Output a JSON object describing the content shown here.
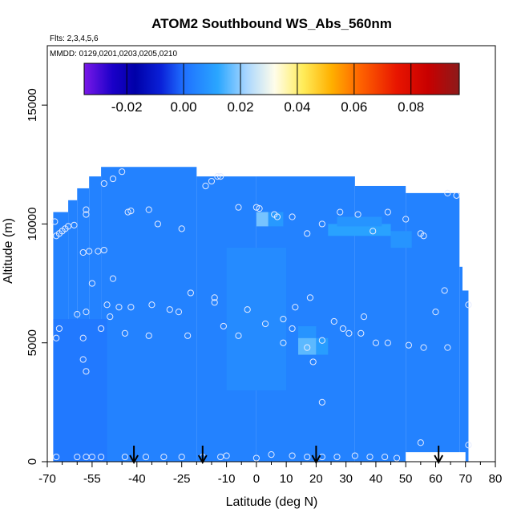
{
  "chart_data": {
    "type": "heatmap",
    "title": "ATOM2 Southbound WS_Abs_560nm",
    "subtitle_flights": "Flts: 2,3,4,5,6",
    "subtitle_dates": "MMDD: 0129,0201,0203,0205,0210",
    "xlabel": "Latitude (deg N)",
    "ylabel": "Altitude (m)",
    "xlim": [
      -70,
      80
    ],
    "ylim": [
      0,
      17500
    ],
    "x_ticks": [
      -70,
      -55,
      -40,
      -25,
      -10,
      0,
      10,
      20,
      30,
      40,
      50,
      60,
      70,
      80
    ],
    "x_tick_labels": [
      "-70",
      "-55",
      "-40",
      "-25",
      "-10",
      "0",
      "10",
      "20",
      "30",
      "40",
      "50",
      "60",
      "70",
      "80"
    ],
    "x_minor_ticks": [
      -65,
      -60,
      -50,
      -45,
      -35,
      -30,
      -20,
      -15,
      -5,
      5,
      15,
      25,
      35,
      45,
      55,
      65,
      75
    ],
    "y_ticks": [
      0,
      5000,
      10000,
      15000
    ],
    "y_tick_labels": [
      "0",
      "5000",
      "10000",
      "15000"
    ],
    "colorbar": {
      "range": [
        -0.035,
        0.097
      ],
      "ticks": [
        -0.02,
        0.0,
        0.02,
        0.04,
        0.06,
        0.08
      ],
      "tick_labels": [
        "-0.02",
        "0.00",
        "0.02",
        "0.04",
        "0.06",
        "0.08"
      ],
      "stops": [
        {
          "v": -0.035,
          "color": "#7a18e8"
        },
        {
          "v": -0.025,
          "color": "#1a00c8"
        },
        {
          "v": -0.017,
          "color": "#0000a8"
        },
        {
          "v": -0.008,
          "color": "#0a20d8"
        },
        {
          "v": 0.0,
          "color": "#1f70ff"
        },
        {
          "v": 0.012,
          "color": "#2aa6ff"
        },
        {
          "v": 0.022,
          "color": "#a8d6ff"
        },
        {
          "v": 0.032,
          "color": "#fffdea"
        },
        {
          "v": 0.042,
          "color": "#ffec5a"
        },
        {
          "v": 0.052,
          "color": "#ffb000"
        },
        {
          "v": 0.062,
          "color": "#ff6400"
        },
        {
          "v": 0.075,
          "color": "#e81500"
        },
        {
          "v": 0.086,
          "color": "#c80000"
        },
        {
          "v": 0.097,
          "color": "#8c1a1a"
        }
      ]
    },
    "background_value": 0.004,
    "coverage": [
      {
        "lat": [
          -68,
          -63
        ],
        "alt": [
          0,
          10500
        ]
      },
      {
        "lat": [
          -63,
          -60
        ],
        "alt": [
          0,
          11000
        ]
      },
      {
        "lat": [
          -60,
          -56
        ],
        "alt": [
          0,
          11500
        ]
      },
      {
        "lat": [
          -56,
          -52
        ],
        "alt": [
          0,
          12000
        ]
      },
      {
        "lat": [
          -52,
          -20
        ],
        "alt": [
          0,
          12400
        ]
      },
      {
        "lat": [
          -20,
          0
        ],
        "alt": [
          0,
          12000
        ]
      },
      {
        "lat": [
          0,
          33
        ],
        "alt": [
          0,
          12000
        ]
      },
      {
        "lat": [
          33,
          50
        ],
        "alt": [
          0,
          11600
        ]
      },
      {
        "lat": [
          50,
          68
        ],
        "alt": [
          0,
          11300
        ]
      },
      {
        "lat": [
          68,
          69
        ],
        "alt": [
          0,
          8200
        ]
      },
      {
        "lat": [
          69,
          71
        ],
        "alt": [
          0,
          7200
        ]
      }
    ],
    "features": [
      {
        "lat": [
          0,
          4
        ],
        "alt": [
          9900,
          10500
        ],
        "value": 0.018
      },
      {
        "lat": [
          4,
          9
        ],
        "alt": [
          9900,
          10500
        ],
        "value": 0.009
      },
      {
        "lat": [
          14,
          20
        ],
        "alt": [
          5200,
          5700
        ],
        "value": 0.008
      },
      {
        "lat": [
          14,
          20
        ],
        "alt": [
          4500,
          5200
        ],
        "value": 0.016
      },
      {
        "lat": [
          20,
          24
        ],
        "alt": [
          4500,
          5200
        ],
        "value": 0.01
      },
      {
        "lat": [
          24,
          45
        ],
        "alt": [
          9500,
          10000
        ],
        "value": 0.011
      },
      {
        "lat": [
          27,
          42
        ],
        "alt": [
          9900,
          10300
        ],
        "value": 0.008
      },
      {
        "lat": [
          45,
          52
        ],
        "alt": [
          9000,
          9700
        ],
        "value": 0.008
      },
      {
        "lat": [
          -68,
          -50
        ],
        "alt": [
          0,
          6000
        ],
        "value": 0.002
      },
      {
        "lat": [
          -10,
          10
        ],
        "alt": [
          3000,
          9000
        ],
        "value": 0.006
      }
    ],
    "no_data": [
      {
        "lat": [
          50,
          70
        ],
        "alt": [
          0,
          400
        ]
      }
    ],
    "sample_points": [
      [
        -67.5,
        10100
      ],
      [
        -67,
        9500
      ],
      [
        -66,
        9600
      ],
      [
        -65,
        9700
      ],
      [
        -64,
        9800
      ],
      [
        -63,
        9900
      ],
      [
        -61,
        9950
      ],
      [
        -57,
        10400
      ],
      [
        -57,
        10600
      ],
      [
        -51,
        11700
      ],
      [
        -48,
        11900
      ],
      [
        -45,
        12200
      ],
      [
        -43,
        10500
      ],
      [
        -42,
        10550
      ],
      [
        -36,
        10600
      ],
      [
        -33,
        10000
      ],
      [
        -25,
        9800
      ],
      [
        -17,
        11600
      ],
      [
        -15,
        11800
      ],
      [
        -13,
        12000
      ],
      [
        -12,
        12000
      ],
      [
        -6,
        10700
      ],
      [
        0,
        10700
      ],
      [
        1,
        10650
      ],
      [
        6,
        10400
      ],
      [
        7,
        10300
      ],
      [
        12,
        10300
      ],
      [
        17,
        9600
      ],
      [
        22,
        10000
      ],
      [
        28,
        10500
      ],
      [
        34,
        10400
      ],
      [
        39,
        9700
      ],
      [
        44,
        10500
      ],
      [
        50,
        10200
      ],
      [
        55,
        9600
      ],
      [
        56,
        9500
      ],
      [
        64,
        11300
      ],
      [
        67,
        11200
      ],
      [
        -58,
        8800
      ],
      [
        -56,
        8850
      ],
      [
        -53,
        8850
      ],
      [
        -51,
        8900
      ],
      [
        -48,
        7700
      ],
      [
        -55,
        7500
      ],
      [
        -49,
        6100
      ],
      [
        -50,
        6600
      ],
      [
        -46,
        6500
      ],
      [
        -42,
        6500
      ],
      [
        -35,
        6600
      ],
      [
        -29,
        6400
      ],
      [
        -26,
        6300
      ],
      [
        -22,
        7100
      ],
      [
        -14,
        6700
      ],
      [
        -14,
        6900
      ],
      [
        -3,
        6400
      ],
      [
        13,
        6500
      ],
      [
        18,
        6900
      ],
      [
        9,
        6000
      ],
      [
        63,
        7200
      ],
      [
        71,
        6600
      ],
      [
        60,
        6300
      ],
      [
        -66,
        5600
      ],
      [
        -67,
        5200
      ],
      [
        -60,
        6200
      ],
      [
        -57,
        6300
      ],
      [
        -58,
        5200
      ],
      [
        -52,
        5600
      ],
      [
        -44,
        5400
      ],
      [
        -36,
        5300
      ],
      [
        -23,
        5300
      ],
      [
        -11,
        5700
      ],
      [
        -6,
        5300
      ],
      [
        3,
        5800
      ],
      [
        9,
        5000
      ],
      [
        12,
        5600
      ],
      [
        17,
        4800
      ],
      [
        19,
        4200
      ],
      [
        22,
        5100
      ],
      [
        26,
        5900
      ],
      [
        29,
        5600
      ],
      [
        31,
        5400
      ],
      [
        35,
        5400
      ],
      [
        36,
        6100
      ],
      [
        40,
        5000
      ],
      [
        44,
        5000
      ],
      [
        51,
        4900
      ],
      [
        56,
        4800
      ],
      [
        64,
        4800
      ],
      [
        -58,
        4300
      ],
      [
        -57,
        3800
      ],
      [
        22,
        2500
      ],
      [
        -67,
        200
      ],
      [
        -60,
        200
      ],
      [
        -57,
        200
      ],
      [
        -55,
        200
      ],
      [
        -52,
        200
      ],
      [
        -44,
        200
      ],
      [
        -37,
        200
      ],
      [
        -31,
        200
      ],
      [
        -25,
        200
      ],
      [
        -18,
        200
      ],
      [
        -12,
        200
      ],
      [
        -10,
        250
      ],
      [
        0,
        150
      ],
      [
        5,
        300
      ],
      [
        12,
        250
      ],
      [
        17,
        200
      ],
      [
        22,
        200
      ],
      [
        27,
        200
      ],
      [
        33,
        250
      ],
      [
        38,
        200
      ],
      [
        43,
        200
      ],
      [
        47,
        150
      ],
      [
        55,
        800
      ],
      [
        71,
        700
      ]
    ],
    "flight_markers_lat": [
      -41,
      -18,
      20,
      61
    ]
  }
}
